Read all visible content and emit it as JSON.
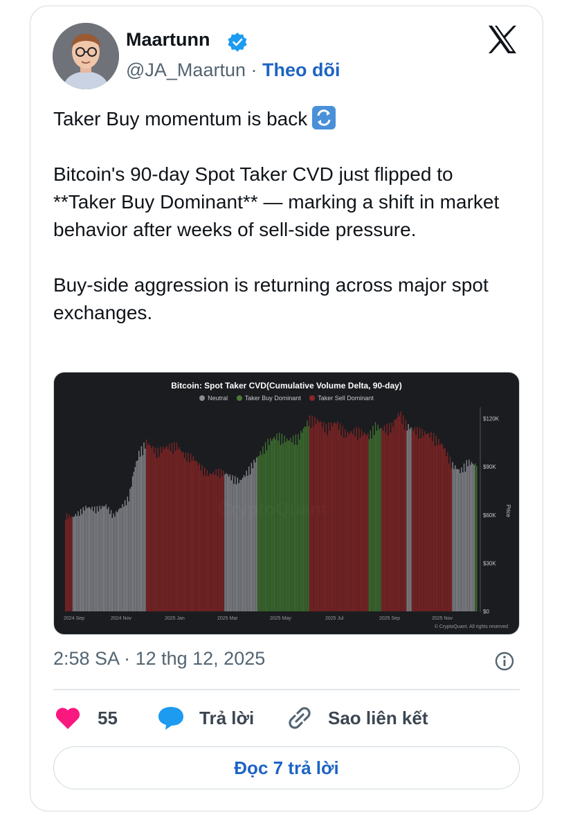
{
  "author": {
    "name": "Maartunn",
    "handle": "@JA_Maartun",
    "separator": " · ",
    "follow_label": "Theo dõi"
  },
  "tweet": {
    "line1": "Taker Buy momentum is back",
    "para2": "Bitcoin's 90-day Spot Taker CVD just flipped to **Taker Buy Dominant** — marking a shift in market behavior after weeks of sell-side pressure.",
    "para3": "Buy-side aggression is returning across major spot exchanges."
  },
  "chart_data": {
    "type": "bar",
    "title": "Bitcoin: Spot Taker CVD(Cumulative Volume Delta, 90-day)",
    "legend": [
      {
        "name": "Neutral",
        "color": "#8b8d93"
      },
      {
        "name": "Taker Buy Dominant",
        "color": "#3a6e2a"
      },
      {
        "name": "Taker Sell Dominant",
        "color": "#7a2020"
      }
    ],
    "x_ticks": [
      "2024 Sep",
      "2024 Nov",
      "2025 Jan",
      "2025 Mar",
      "2025 May",
      "2025 Jul",
      "2025 Sep",
      "2025 Nov"
    ],
    "y_ticks": [
      "$0",
      "$30K",
      "$60K",
      "$90K",
      "$120K"
    ],
    "ylabel": "Price",
    "ylim": [
      0,
      125000
    ],
    "watermark": "CryptoQuant",
    "credit": "© CryptoQuant. All rights reserved",
    "legend_position": "top-center",
    "grid": false,
    "segments": [
      {
        "state": "Taker Sell Dominant",
        "x": [
          0,
          6
        ],
        "points": [
          [
            0,
            59000
          ],
          [
            6,
            58000
          ]
        ]
      },
      {
        "state": "Neutral",
        "x": [
          6,
          64
        ],
        "points": [
          [
            6,
            58000
          ],
          [
            16,
            64000
          ],
          [
            24,
            63000
          ],
          [
            32,
            65000
          ],
          [
            38,
            59000
          ],
          [
            44,
            64000
          ],
          [
            50,
            70000
          ],
          [
            54,
            86000
          ],
          [
            58,
            97000
          ],
          [
            64,
            104000
          ]
        ]
      },
      {
        "state": "Taker Sell Dominant",
        "x": [
          64,
          126
        ],
        "points": [
          [
            64,
            104000
          ],
          [
            72,
            98000
          ],
          [
            80,
            101000
          ],
          [
            88,
            102000
          ],
          [
            94,
            96000
          ],
          [
            100,
            95000
          ],
          [
            108,
            88000
          ],
          [
            114,
            84000
          ],
          [
            120,
            86000
          ],
          [
            126,
            85000
          ]
        ]
      },
      {
        "state": "Neutral",
        "x": [
          126,
          152
        ],
        "points": [
          [
            126,
            85000
          ],
          [
            132,
            82000
          ],
          [
            138,
            80000
          ],
          [
            144,
            86000
          ],
          [
            152,
            95000
          ]
        ]
      },
      {
        "state": "Taker Buy Dominant",
        "x": [
          152,
          193
        ],
        "points": [
          [
            152,
            95000
          ],
          [
            160,
            104000
          ],
          [
            168,
            108000
          ],
          [
            176,
            105000
          ],
          [
            184,
            107000
          ],
          [
            193,
            118000
          ]
        ]
      },
      {
        "state": "Taker Sell Dominant",
        "x": [
          193,
          240
        ],
        "points": [
          [
            193,
            118000
          ],
          [
            200,
            117000
          ],
          [
            206,
            113000
          ],
          [
            214,
            116000
          ],
          [
            222,
            109000
          ],
          [
            230,
            111000
          ],
          [
            240,
            108000
          ]
        ]
      },
      {
        "state": "Taker Buy Dominant",
        "x": [
          240,
          250
        ],
        "points": [
          [
            240,
            108000
          ],
          [
            245,
            114000
          ],
          [
            250,
            112000
          ]
        ]
      },
      {
        "state": "Taker Sell Dominant",
        "x": [
          250,
          270
        ],
        "points": [
          [
            250,
            112000
          ],
          [
            258,
            114000
          ],
          [
            264,
            122000
          ],
          [
            270,
            114000
          ]
        ]
      },
      {
        "state": "Neutral",
        "x": [
          270,
          274
        ],
        "points": [
          [
            270,
            114000
          ],
          [
            274,
            112000
          ]
        ]
      },
      {
        "state": "Taker Sell Dominant",
        "x": [
          274,
          306
        ],
        "points": [
          [
            274,
            112000
          ],
          [
            282,
            110000
          ],
          [
            290,
            108000
          ],
          [
            298,
            102000
          ],
          [
            306,
            90000
          ]
        ]
      },
      {
        "state": "Neutral",
        "x": [
          306,
          324
        ],
        "points": [
          [
            306,
            90000
          ],
          [
            312,
            86000
          ],
          [
            318,
            92000
          ],
          [
            324,
            90000
          ]
        ]
      },
      {
        "state": "Taker Buy Dominant",
        "x": [
          324,
          326
        ],
        "points": [
          [
            324,
            90000
          ],
          [
            326,
            92000
          ]
        ]
      }
    ]
  },
  "meta": {
    "timestamp": "2:58 SA · 12 thg 12, 2025"
  },
  "actions": {
    "likes_count": "55",
    "reply_label": "Trả lời",
    "copy_link_label": "Sao liên kết"
  },
  "read_replies_label": "Đọc 7 trả lời"
}
